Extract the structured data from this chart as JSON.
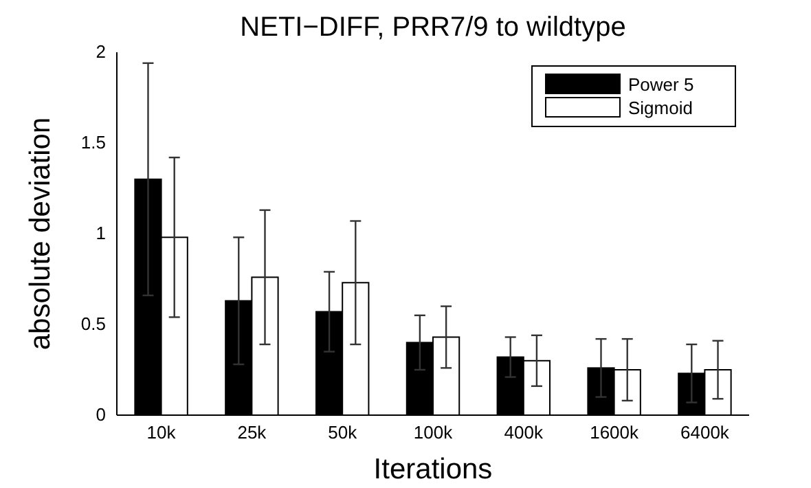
{
  "chart_data": {
    "type": "bar",
    "title": "NETI−DIFF, PRR7/9 to wildtype",
    "xlabel": "Iterations",
    "ylabel": "absolute deviation",
    "categories": [
      "10k",
      "25k",
      "50k",
      "100k",
      "400k",
      "1600k",
      "6400k"
    ],
    "series": [
      {
        "name": "Power 5",
        "color": "#000000",
        "values": [
          1.3,
          0.63,
          0.57,
          0.4,
          0.32,
          0.26,
          0.23
        ],
        "errors": [
          0.64,
          0.35,
          0.22,
          0.15,
          0.11,
          0.16,
          0.16
        ]
      },
      {
        "name": "Sigmoid",
        "color": "#ffffff",
        "values": [
          0.98,
          0.76,
          0.73,
          0.43,
          0.3,
          0.25,
          0.25
        ],
        "errors": [
          0.44,
          0.37,
          0.34,
          0.17,
          0.14,
          0.17,
          0.16
        ]
      }
    ],
    "ylim": [
      0,
      2
    ],
    "yticks": [
      0,
      0.5,
      1,
      1.5,
      2
    ],
    "legend": "top right",
    "grid": false
  }
}
